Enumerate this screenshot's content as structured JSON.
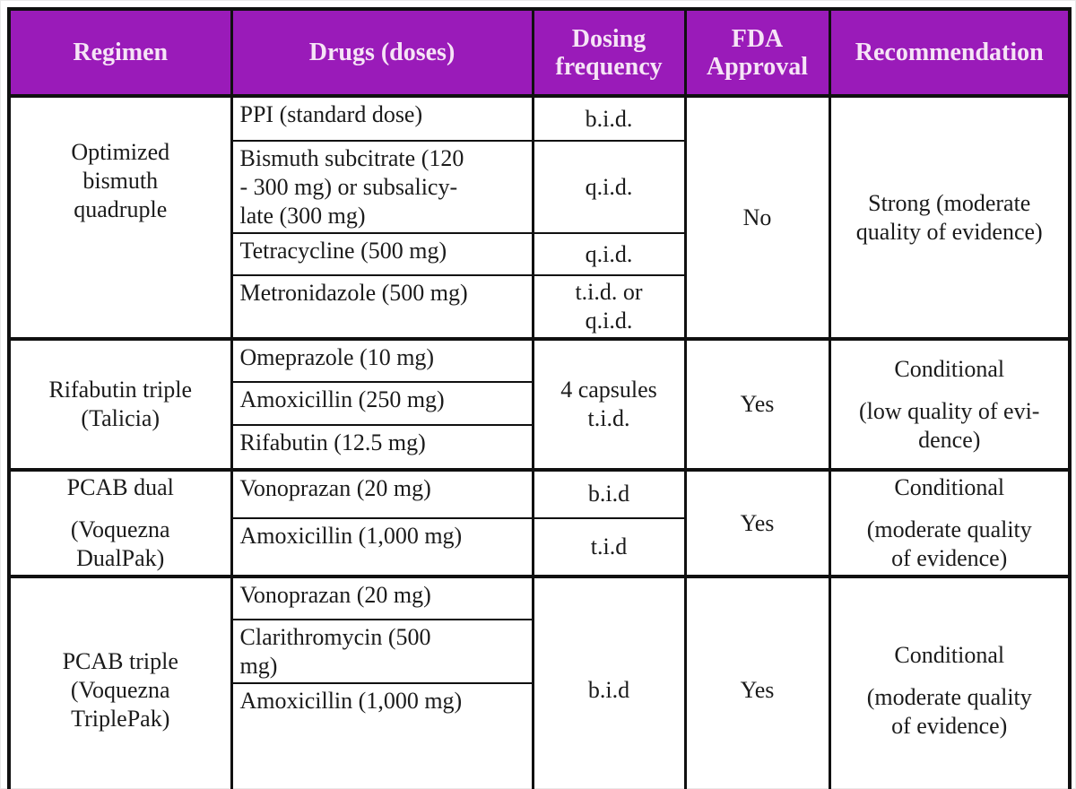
{
  "colors": {
    "header_bg": "#9A1BB9",
    "header_text": "#F6E4F6",
    "border": "#101010",
    "body_text": "#1b1b1b",
    "background": "#ffffff"
  },
  "header": {
    "regimen": [
      "Regimen"
    ],
    "drugs": [
      "Drugs (doses)"
    ],
    "dosing": [
      "Dosing",
      "frequency"
    ],
    "fda": [
      "FDA",
      "Approval"
    ],
    "recommendation": [
      "Recommendation"
    ]
  },
  "groups": [
    {
      "regimen": [
        "Optimized",
        "bismuth",
        "quadruple"
      ],
      "rows": [
        {
          "drug": [
            "PPI (standard dose)"
          ],
          "freq": [
            "b.i.d."
          ]
        },
        {
          "drug": [
            "Bismuth subcitrate (120",
            "- 300 mg) or subsalicy-",
            "late (300 mg)"
          ],
          "freq": [
            "q.i.d."
          ]
        },
        {
          "drug": [
            "Tetracycline (500 mg)"
          ],
          "freq": [
            "q.i.d."
          ]
        },
        {
          "drug": [
            "Metronidazole (500 mg)"
          ],
          "freq": [
            "t.i.d. or",
            "q.i.d."
          ]
        }
      ],
      "fda": "No",
      "recommendation": [
        "Strong (moderate",
        "quality of evidence)"
      ]
    },
    {
      "regimen": [
        "Rifabutin triple",
        "(Talicia)"
      ],
      "rows": [
        {
          "drug": [
            "Omeprazole (10 mg)"
          ]
        },
        {
          "drug": [
            "Amoxicillin (250 mg)"
          ]
        },
        {
          "drug": [
            "Rifabutin (12.5 mg)"
          ]
        }
      ],
      "freq_merged": [
        "4 capsules",
        "t.i.d."
      ],
      "fda": "Yes",
      "recommendation": [
        "Conditional",
        "",
        "(low quality of evi-",
        "dence)"
      ]
    },
    {
      "regimen": [
        "PCAB dual",
        "",
        "(Voquezna",
        "DualPak)"
      ],
      "rows": [
        {
          "drug": [
            "Vonoprazan (20 mg)"
          ],
          "freq": [
            "b.i.d"
          ]
        },
        {
          "drug": [
            "Amoxicillin (1,000 mg)"
          ],
          "freq": [
            "t.i.d"
          ]
        }
      ],
      "fda": "Yes",
      "recommendation": [
        "Conditional",
        "",
        "(moderate quality",
        "of evidence)"
      ]
    },
    {
      "regimen": [
        "PCAB triple",
        "(Voquezna",
        "TriplePak)"
      ],
      "rows": [
        {
          "drug": [
            "Vonoprazan (20 mg)"
          ]
        },
        {
          "drug": [
            "Clarithromycin (500",
            "mg)"
          ]
        },
        {
          "drug": [
            "Amoxicillin (1,000 mg)"
          ]
        }
      ],
      "freq_merged": [
        "b.i.d"
      ],
      "fda": "Yes",
      "recommendation": [
        "Conditional",
        "",
        "(moderate quality",
        "of evidence)"
      ]
    }
  ]
}
